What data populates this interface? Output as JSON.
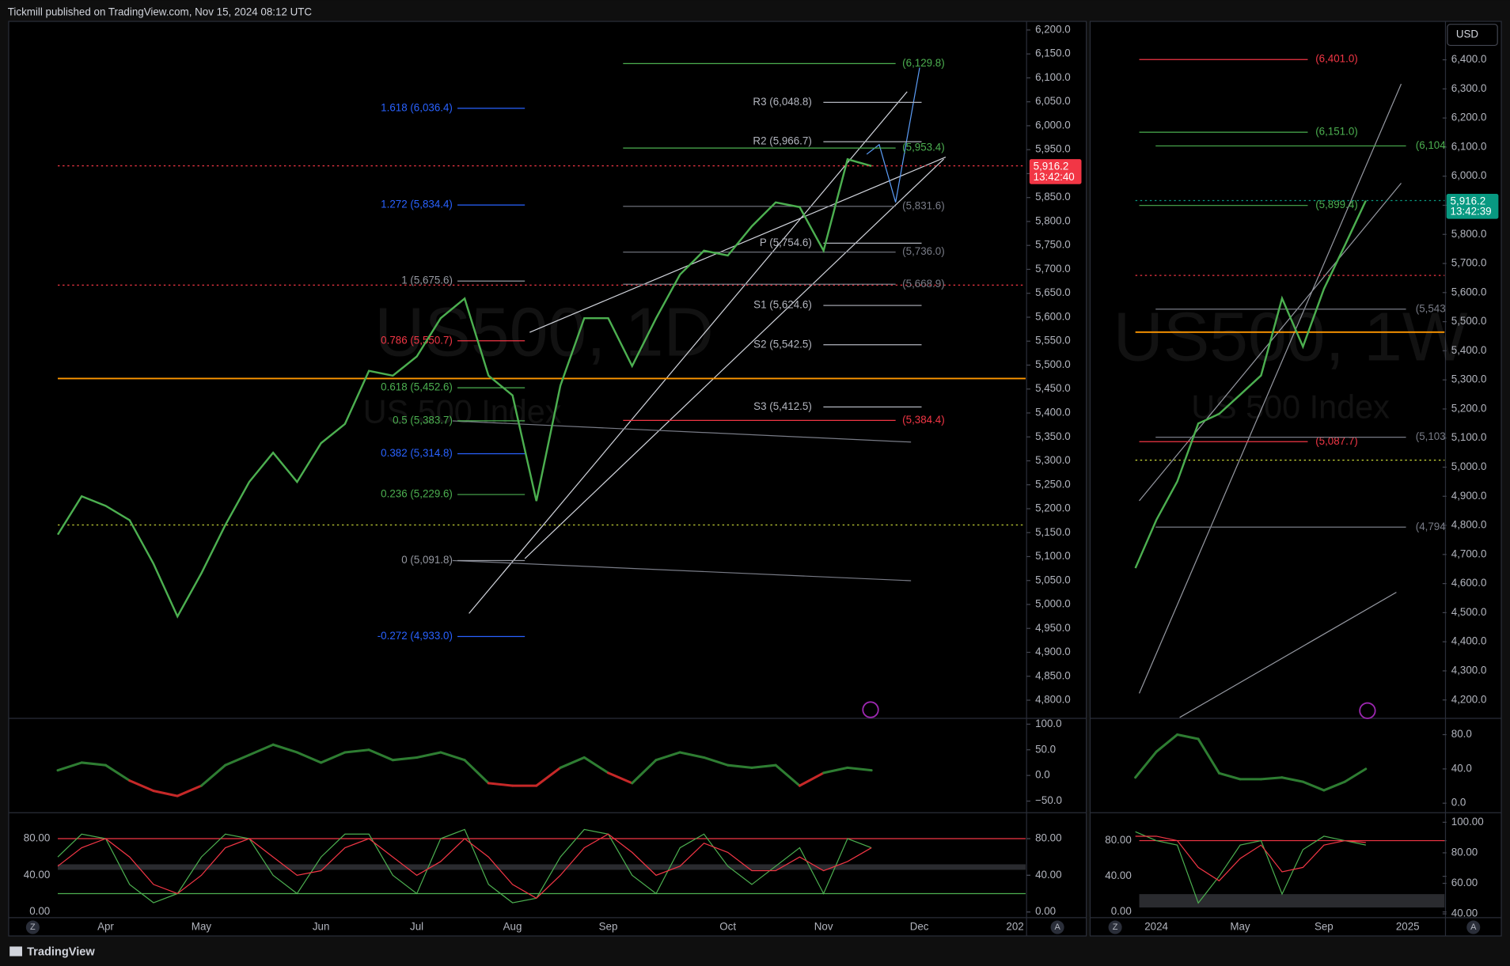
{
  "header": "Tickmill published on TradingView.com, Nov 15, 2024 08:12 UTC",
  "footer": "TradingView",
  "currency_button": "USD",
  "buttons": {
    "zoom": "Z",
    "auto": "A"
  },
  "chart_data": [
    {
      "type": "line",
      "title": "US500, 1D",
      "subtitle": "US 500 Index",
      "categories": [
        null,
        null,
        "Apr",
        null,
        null,
        null,
        "May",
        null,
        null,
        null,
        null,
        "Jun",
        null,
        null,
        null,
        "Jul",
        null,
        null,
        null,
        "Aug",
        null,
        null,
        null,
        "Sep",
        null,
        null,
        null,
        null,
        "Oct",
        null,
        null,
        null,
        "Nov",
        null,
        null,
        null,
        "Dec",
        null,
        null,
        null,
        "202"
      ],
      "series": [
        {
          "color": "#4caf50",
          "values": [
            5146,
            5226,
            5206,
            5176,
            5085,
            4975,
            5065,
            5166,
            5256,
            5317,
            5256,
            5337,
            5377,
            5488,
            5478,
            5518,
            5598,
            5639,
            5478,
            5437,
            5216,
            5457,
            5598,
            5598,
            5498,
            5598,
            5689,
            5739,
            5729,
            5790,
            5840,
            5830,
            5739,
            5930,
            5916,
            null,
            null,
            null,
            null,
            null,
            null
          ]
        }
      ],
      "ylim": [
        4764,
        6218
      ],
      "yticks": [
        {
          "value": 4800,
          "label": "4,800.0"
        },
        {
          "value": 4850,
          "label": "4,850.0"
        },
        {
          "value": 4900,
          "label": "4,900.0"
        },
        {
          "value": 4950,
          "label": "4,950.0"
        },
        {
          "value": 5000,
          "label": "5,000.0"
        },
        {
          "value": 5050,
          "label": "5,050.0"
        },
        {
          "value": 5100,
          "label": "5,100.0"
        },
        {
          "value": 5150,
          "label": "5,150.0"
        },
        {
          "value": 5200,
          "label": "5,200.0"
        },
        {
          "value": 5250,
          "label": "5,250.0"
        },
        {
          "value": 5300,
          "label": "5,300.0"
        },
        {
          "value": 5350,
          "label": "5,350.0"
        },
        {
          "value": 5400,
          "label": "5,400.0"
        },
        {
          "value": 5450,
          "label": "5,450.0"
        },
        {
          "value": 5500,
          "label": "5,500.0"
        },
        {
          "value": 5550,
          "label": "5,550.0"
        },
        {
          "value": 5600,
          "label": "5,600.0"
        },
        {
          "value": 5650,
          "label": "5,650.0"
        },
        {
          "value": 5700,
          "label": "5,700.0"
        },
        {
          "value": 5750,
          "label": "5,750.0"
        },
        {
          "value": 5800,
          "label": "5,800.0"
        },
        {
          "value": 5850,
          "label": "5,850.0"
        },
        {
          "value": 5900,
          "label": "5,900.0"
        },
        {
          "value": 5950,
          "label": "5,950.0"
        },
        {
          "value": 6000,
          "label": "6,000.0"
        },
        {
          "value": 6050,
          "label": "6,050.0"
        },
        {
          "value": 6100,
          "label": "6,100.0"
        },
        {
          "value": 6150,
          "label": "6,150.0"
        },
        {
          "value": 6200,
          "label": "6,200.0"
        }
      ],
      "last_price": {
        "value": 5916.2,
        "label": "5,916.2",
        "color": "#f23645"
      },
      "countdown": "13:42:40",
      "reference_lines": [
        {
          "value": 5667,
          "color": "#f23645",
          "style": "dotted"
        },
        {
          "value": 5472,
          "color": "#ff9800",
          "style": "solid"
        },
        {
          "value": 5166,
          "color": "#cddc39",
          "style": "dotted"
        }
      ],
      "fib_levels": [
        {
          "label": "1.618 (6,036.4)",
          "value": 6036.4,
          "color": "#2962ff"
        },
        {
          "label": "1.272 (5,834.4)",
          "value": 5834.4,
          "color": "#2962ff"
        },
        {
          "label": "1 (5,675.6)",
          "value": 5675.6,
          "color": "#9598a1"
        },
        {
          "label": "0.786 (5,550.7)",
          "value": 5550.7,
          "color": "#f23645"
        },
        {
          "label": "0.618 (5,452.6)",
          "value": 5452.6,
          "color": "#4caf50"
        },
        {
          "label": "0.5 (5,383.7)",
          "value": 5383.7,
          "color": "#4caf50"
        },
        {
          "label": "0.382 (5,314.8)",
          "value": 5314.8,
          "color": "#2962ff"
        },
        {
          "label": "0.236 (5,229.6)",
          "value": 5229.6,
          "color": "#4caf50"
        },
        {
          "label": "0 (5,091.8)",
          "value": 5091.8,
          "color": "#9598a1"
        },
        {
          "label": "-0.272 (4,933.0)",
          "value": 4933.0,
          "color": "#2962ff"
        }
      ],
      "pivot_levels": [
        {
          "label": "R3 (6,048.8)",
          "value": 6048.8,
          "color": "#b2b5be"
        },
        {
          "label": "R2 (5,966.7)",
          "value": 5966.7,
          "color": "#b2b5be"
        },
        {
          "label": "P (5,754.6)",
          "value": 5754.6,
          "color": "#b2b5be"
        },
        {
          "label": "S1 (5,624.6)",
          "value": 5624.6,
          "color": "#b2b5be"
        },
        {
          "label": "S2 (5,542.5)",
          "value": 5542.5,
          "color": "#b2b5be"
        },
        {
          "label": "S3 (5,412.5)",
          "value": 5412.5,
          "color": "#b2b5be"
        }
      ],
      "target_levels": [
        {
          "label": "(6,129.8)",
          "value": 6129.8,
          "color": "#4caf50"
        },
        {
          "label": "(5,953.4)",
          "value": 5953.4,
          "color": "#4caf50"
        },
        {
          "label": "(5,831.6)",
          "value": 5831.6,
          "color": "#787b86"
        },
        {
          "label": "(5,736.0)",
          "value": 5736.0,
          "color": "#787b86"
        },
        {
          "label": "(5,668.9)",
          "value": 5668.9,
          "color": "#787b86"
        },
        {
          "label": "(5,384.4)",
          "value": 5384.4,
          "color": "#f23645"
        }
      ]
    },
    {
      "type": "momentum",
      "positive_color": "#2e7d32",
      "negative_color": "#c62828",
      "values": [
        10,
        25,
        20,
        -10,
        -30,
        -40,
        -20,
        20,
        40,
        60,
        45,
        25,
        45,
        50,
        30,
        35,
        45,
        30,
        -15,
        -20,
        -20,
        15,
        35,
        5,
        -15,
        30,
        45,
        35,
        20,
        15,
        20,
        -20,
        5,
        15,
        10,
        null,
        null,
        null,
        null,
        null,
        null
      ],
      "ylim": [
        -70.8,
        107.5
      ],
      "yticks": [
        {
          "value": 100,
          "label": "100.0"
        },
        {
          "value": 50,
          "label": "50.0"
        },
        {
          "value": 0,
          "label": "0.0"
        },
        {
          "value": -50,
          "label": "−50.0"
        }
      ]
    },
    {
      "type": "stochastic",
      "series": [
        {
          "color": "#4caf50",
          "values": [
            60,
            85,
            80,
            30,
            10,
            20,
            60,
            85,
            80,
            40,
            20,
            60,
            85,
            85,
            40,
            20,
            80,
            90,
            30,
            10,
            15,
            60,
            90,
            85,
            40,
            20,
            70,
            85,
            50,
            30,
            50,
            70,
            20,
            80,
            70,
            null,
            null,
            null,
            null,
            null,
            null
          ]
        },
        {
          "color": "#f23645",
          "values": [
            50,
            70,
            80,
            60,
            30,
            20,
            40,
            70,
            80,
            60,
            40,
            45,
            70,
            80,
            60,
            40,
            55,
            80,
            60,
            30,
            15,
            40,
            70,
            85,
            65,
            40,
            50,
            75,
            65,
            45,
            45,
            60,
            45,
            55,
            70,
            null,
            null,
            null,
            null,
            null,
            null
          ]
        }
      ],
      "levels": [
        {
          "value": 80,
          "color": "#f23645"
        },
        {
          "value": 20,
          "color": "#4caf50"
        }
      ],
      "band": [
        46,
        52
      ],
      "ylim": [
        -13.6,
        106.2
      ],
      "yticks": [
        {
          "value": 80,
          "label": "80.00"
        },
        {
          "value": 40,
          "label": "40.00"
        },
        {
          "value": 0,
          "label": "0.00"
        }
      ],
      "y2lim": [
        -13.6,
        106.2
      ],
      "y2ticks": [
        {
          "value": 80,
          "label": "80.00"
        },
        {
          "value": 40,
          "label": "40.00"
        },
        {
          "value": 0,
          "label": "0.00"
        }
      ]
    },
    {
      "type": "line",
      "title": "US500, 1W",
      "subtitle": "US 500 Index",
      "categories": [
        null,
        "2024",
        null,
        null,
        null,
        "May",
        null,
        null,
        null,
        "Sep",
        null,
        null,
        null,
        "2025",
        null
      ],
      "series": [
        {
          "color": "#4caf50",
          "values": [
            4653,
            4819,
            4951,
            5150,
            5183,
            5249,
            5315,
            5580,
            5414,
            5613,
            5762,
            5916,
            null,
            null,
            null
          ]
        }
      ],
      "ylim": [
        4140,
        6532
      ],
      "yticks": [
        {
          "value": 4200,
          "label": "4,200.0"
        },
        {
          "value": 4300,
          "label": "4,300.0"
        },
        {
          "value": 4400,
          "label": "4,400.0"
        },
        {
          "value": 4500,
          "label": "4,500.0"
        },
        {
          "value": 4600,
          "label": "4,600.0"
        },
        {
          "value": 4700,
          "label": "4,700.0"
        },
        {
          "value": 4800,
          "label": "4,800.0"
        },
        {
          "value": 4900,
          "label": "4,900.0"
        },
        {
          "value": 5000,
          "label": "5,000.0"
        },
        {
          "value": 5100,
          "label": "5,100.0"
        },
        {
          "value": 5200,
          "label": "5,200.0"
        },
        {
          "value": 5300,
          "label": "5,300.0"
        },
        {
          "value": 5400,
          "label": "5,400.0"
        },
        {
          "value": 5500,
          "label": "5,500.0"
        },
        {
          "value": 5600,
          "label": "5,600.0"
        },
        {
          "value": 5700,
          "label": "5,700.0"
        },
        {
          "value": 5800,
          "label": "5,800.0"
        },
        {
          "value": 5900,
          "label": "5,900.0"
        },
        {
          "value": 6000,
          "label": "6,000.0"
        },
        {
          "value": 6100,
          "label": "6,100.0"
        },
        {
          "value": 6200,
          "label": "6,200.0"
        },
        {
          "value": 6300,
          "label": "6,300.0"
        },
        {
          "value": 6400,
          "label": "6,400.0"
        }
      ],
      "last_price": {
        "value": 5916.2,
        "label": "5,916.2",
        "color": "#089981"
      },
      "countdown": "13:42:39",
      "reference_lines": [
        {
          "value": 5659,
          "color": "#f23645",
          "style": "dotted"
        },
        {
          "value": 5464,
          "color": "#ff9800",
          "style": "solid"
        },
        {
          "value": 5024,
          "color": "#cddc39",
          "style": "dotted"
        }
      ],
      "target_levels": [
        {
          "label": "(6,401.0)",
          "value": 6401.0,
          "color": "#f23645"
        },
        {
          "label": "(6,151.0)",
          "value": 6151.0,
          "color": "#4caf50"
        },
        {
          "label": "(5,899.4)",
          "value": 5899.4,
          "color": "#4caf50"
        },
        {
          "label": "(5,087.7)",
          "value": 5087.7,
          "color": "#f23645"
        }
      ],
      "edge_levels": [
        {
          "label": "(6,104",
          "value": 6104,
          "color": "#4caf50"
        },
        {
          "label": "(5,543",
          "value": 5543,
          "color": "#787b86"
        },
        {
          "label": "(5,103",
          "value": 5103,
          "color": "#787b86"
        },
        {
          "label": "(4,794",
          "value": 4794,
          "color": "#787b86"
        }
      ]
    },
    {
      "type": "momentum",
      "positive_color": "#2e7d32",
      "negative_color": "#c62828",
      "values": [
        30,
        60,
        80,
        75,
        35,
        28,
        28,
        30,
        25,
        15,
        25,
        40,
        null,
        null,
        null
      ],
      "ylim": [
        -10,
        96.7
      ],
      "yticks": [
        {
          "value": 80,
          "label": "80.0"
        },
        {
          "value": 40,
          "label": "40.0"
        },
        {
          "value": 0,
          "label": "0.0"
        }
      ]
    },
    {
      "type": "stochastic",
      "series": [
        {
          "color": "#4caf50",
          "values": [
            90,
            80,
            75,
            10,
            40,
            75,
            80,
            20,
            70,
            85,
            80,
            75,
            null,
            null,
            null
          ]
        },
        {
          "color": "#f23645",
          "values": [
            85,
            85,
            80,
            50,
            35,
            60,
            75,
            45,
            50,
            75,
            80,
            78,
            null,
            null,
            null
          ]
        }
      ],
      "levels": [
        {
          "value": 80,
          "color": "#f23645"
        }
      ],
      "band": [
        5,
        20
      ],
      "ylim": [
        -14,
        109.2
      ],
      "yticks": [
        {
          "value": 80,
          "label": "80.00"
        },
        {
          "value": 40,
          "label": "40.00"
        },
        {
          "value": 0,
          "label": "0.00"
        }
      ],
      "y2lim": [
        33.1,
        105
      ],
      "y2ticks": [
        {
          "value": 100,
          "label": "100.00"
        },
        {
          "value": 80,
          "label": "80.00"
        },
        {
          "value": 60,
          "label": "60.00"
        },
        {
          "value": 40,
          "label": "40.00"
        }
      ]
    }
  ]
}
